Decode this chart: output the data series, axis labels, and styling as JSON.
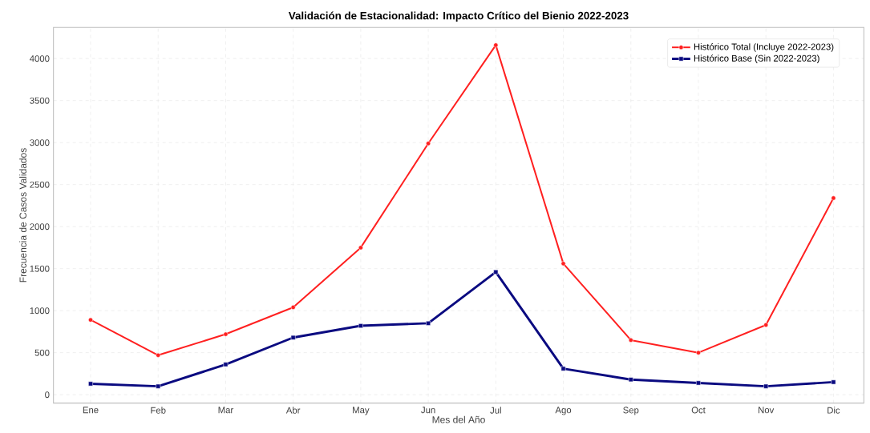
{
  "chart_data": {
    "type": "line",
    "title": "Validación de Estacionalidad: Impacto Crítico del Bienio 2022-2023",
    "xlabel": "Mes del Año",
    "ylabel": "Frecuencia de Casos Validados",
    "categories": [
      "Ene",
      "Feb",
      "Mar",
      "Abr",
      "May",
      "Jun",
      "Jul",
      "Ago",
      "Sep",
      "Oct",
      "Nov",
      "Dic"
    ],
    "series": [
      {
        "name": "Histórico Total (Incluye 2022-2023)",
        "color": "#ff2020",
        "marker": "circle",
        "values": [
          890,
          470,
          720,
          1040,
          1750,
          2990,
          4160,
          1560,
          650,
          500,
          830,
          2340
        ]
      },
      {
        "name": "Histórico Base (Sin 2022-2023)",
        "color": "#0a0a80",
        "marker": "square",
        "values": [
          130,
          100,
          360,
          680,
          820,
          850,
          1460,
          310,
          180,
          140,
          100,
          150
        ]
      }
    ],
    "ylim": [
      -100,
      4370
    ],
    "yticks": [
      0,
      500,
      1000,
      1500,
      2000,
      2500,
      3000,
      3500,
      4000
    ],
    "grid": true,
    "legend": "top right",
    "line_style": "solid"
  }
}
